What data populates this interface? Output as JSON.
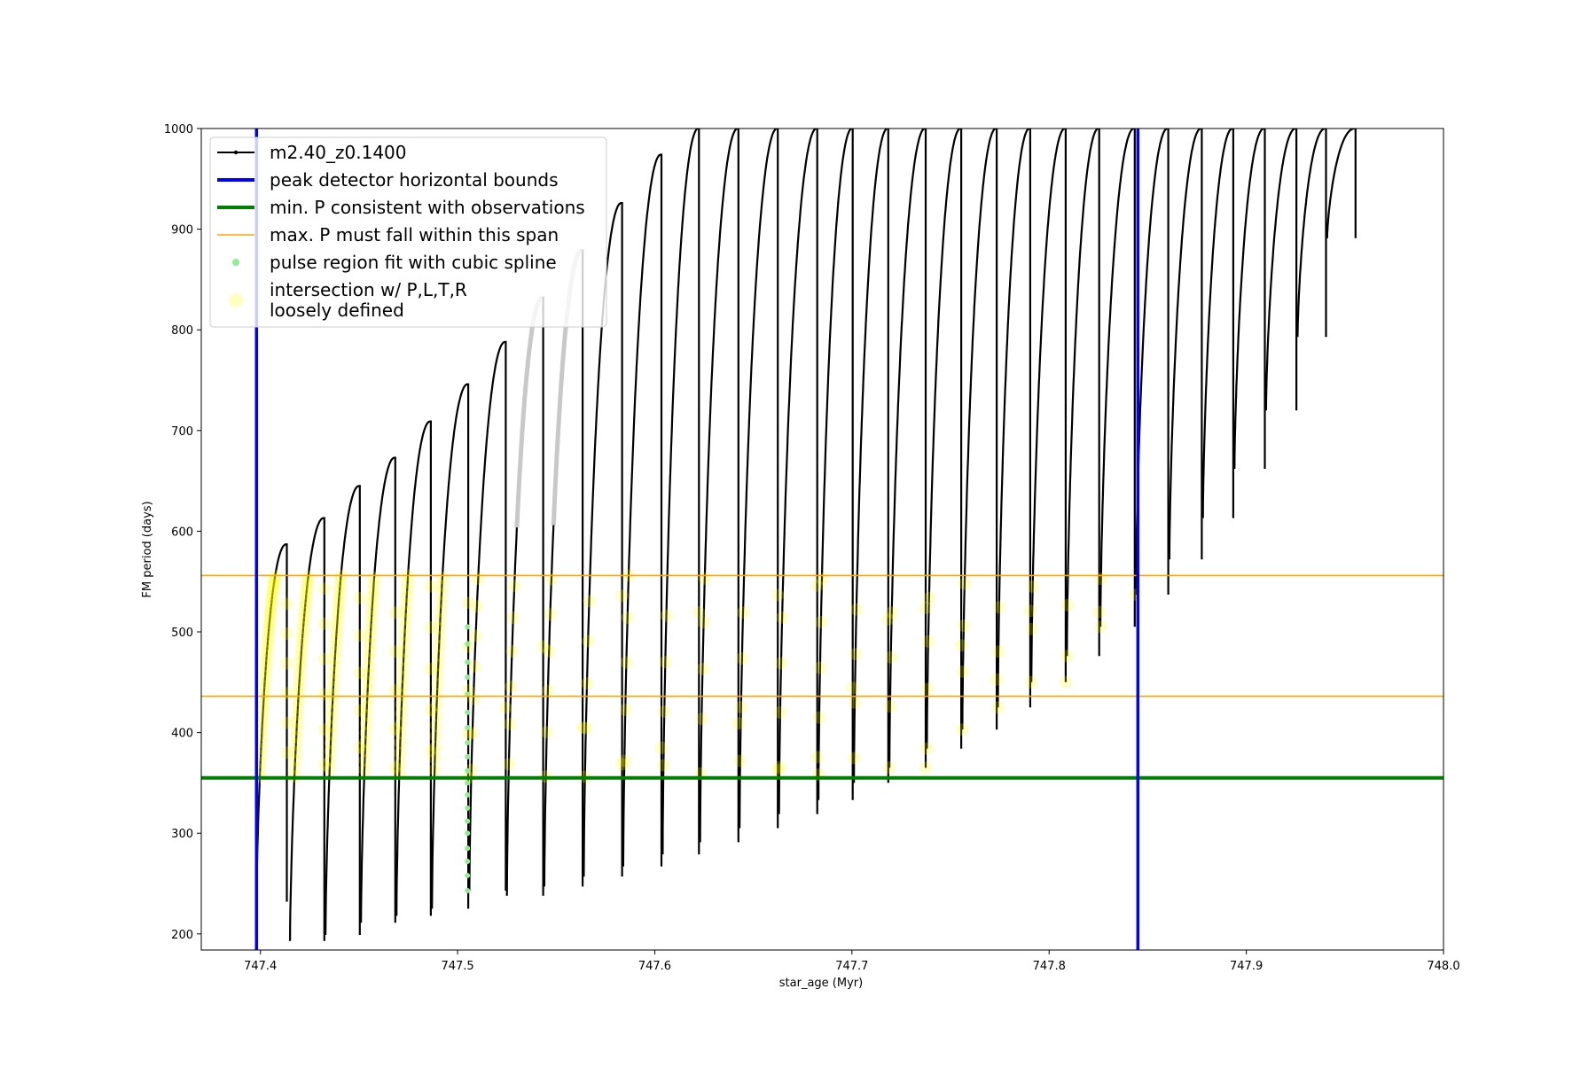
{
  "chart_data": {
    "type": "line",
    "title": "",
    "xlabel": "star_age (Myr)",
    "ylabel": "FM period (days)",
    "xlim": [
      747.37,
      748.0
    ],
    "ylim": [
      184,
      1000
    ],
    "xticks": [
      747.4,
      747.5,
      747.6,
      747.7,
      747.8,
      747.9,
      748.0
    ],
    "xtick_labels": [
      "747.4",
      "747.5",
      "747.6",
      "747.7",
      "747.8",
      "747.9",
      "748.0"
    ],
    "yticks": [
      200,
      300,
      400,
      500,
      600,
      700,
      800,
      900,
      1000
    ],
    "ytick_labels": [
      "200",
      "300",
      "400",
      "500",
      "600",
      "700",
      "800",
      "900",
      "1000"
    ],
    "grid": false,
    "legend_position": "top-left",
    "colors": {
      "track": "#000000",
      "bounds": "#0000ff",
      "min_p": "#008000",
      "max_p": "#ffa500",
      "spline": "#90ee90",
      "intersection": "#ffff00",
      "faded_pulse": "#c8c8c8"
    },
    "legend": [
      {
        "label": "m2.40_z0.1400",
        "marker": "line-dot",
        "color": "#000000"
      },
      {
        "label": "peak detector horizontal bounds",
        "marker": "line-thick",
        "color": "#0000ff"
      },
      {
        "label": "min. P consistent with observations",
        "marker": "line-thick",
        "color": "#008000"
      },
      {
        "label": "max. P must fall within this span",
        "marker": "line-thin",
        "color": "#ffa500"
      },
      {
        "label": "pulse region fit with cubic spline",
        "marker": "dot",
        "color": "#90ee90"
      },
      {
        "label": "intersection w/ P,L,T,R",
        "label2": "loosely defined",
        "marker": "big-dot",
        "color": "#ffff00"
      }
    ],
    "vertical_bounds_x": [
      747.398,
      747.845
    ],
    "min_period": 355,
    "max_period_span": [
      436,
      556
    ],
    "pulses": [
      {
        "start": 747.398,
        "end": 747.413,
        "min": 232,
        "peak": 587
      },
      {
        "start": 747.415,
        "end": 747.432,
        "min": 193,
        "peak": 613
      },
      {
        "start": 747.433,
        "end": 747.45,
        "min": 199,
        "peak": 645
      },
      {
        "start": 747.451,
        "end": 747.468,
        "min": 211,
        "peak": 673
      },
      {
        "start": 747.469,
        "end": 747.486,
        "min": 218,
        "peak": 709
      },
      {
        "start": 747.487,
        "end": 747.505,
        "min": 225,
        "peak": 746
      },
      {
        "start": 747.506,
        "end": 747.524,
        "min": 243,
        "peak": 788
      },
      {
        "start": 747.525,
        "end": 747.543,
        "min": 238,
        "peak": 832
      },
      {
        "start": 747.544,
        "end": 747.563,
        "min": 247,
        "peak": 879
      },
      {
        "start": 747.564,
        "end": 747.583,
        "min": 257,
        "peak": 926
      },
      {
        "start": 747.584,
        "end": 747.603,
        "min": 267,
        "peak": 974
      },
      {
        "start": 747.604,
        "end": 747.622,
        "min": 279,
        "peak": 1000
      },
      {
        "start": 747.623,
        "end": 747.642,
        "min": 291,
        "peak": 1000
      },
      {
        "start": 747.643,
        "end": 747.662,
        "min": 305,
        "peak": 1000
      },
      {
        "start": 747.663,
        "end": 747.682,
        "min": 319,
        "peak": 1000
      },
      {
        "start": 747.683,
        "end": 747.7,
        "min": 333,
        "peak": 1000
      },
      {
        "start": 747.701,
        "end": 747.718,
        "min": 350,
        "peak": 1000
      },
      {
        "start": 747.719,
        "end": 747.737,
        "min": 365,
        "peak": 1000
      },
      {
        "start": 747.738,
        "end": 747.755,
        "min": 384,
        "peak": 1000
      },
      {
        "start": 747.756,
        "end": 747.773,
        "min": 403,
        "peak": 1000
      },
      {
        "start": 747.774,
        "end": 747.79,
        "min": 425,
        "peak": 1000
      },
      {
        "start": 747.791,
        "end": 747.808,
        "min": 450,
        "peak": 1000
      },
      {
        "start": 747.809,
        "end": 747.825,
        "min": 476,
        "peak": 1000
      },
      {
        "start": 747.826,
        "end": 747.843,
        "min": 505,
        "peak": 1000
      },
      {
        "start": 747.844,
        "end": 747.86,
        "min": 537,
        "peak": 1000
      },
      {
        "start": 747.861,
        "end": 747.877,
        "min": 572,
        "peak": 1000
      },
      {
        "start": 747.878,
        "end": 747.893,
        "min": 613,
        "peak": 1000
      },
      {
        "start": 747.894,
        "end": 747.909,
        "min": 662,
        "peak": 1000
      },
      {
        "start": 747.91,
        "end": 747.925,
        "min": 720,
        "peak": 1000
      },
      {
        "start": 747.926,
        "end": 747.94,
        "min": 793,
        "peak": 1000
      },
      {
        "start": 747.941,
        "end": 747.955,
        "min": 891,
        "peak": 1000
      }
    ],
    "faded_pulses": [
      7,
      8
    ],
    "spline_points": {
      "x": 747.505,
      "y": [
        243,
        258,
        272,
        285,
        300,
        312,
        325,
        338,
        350,
        362,
        376,
        390,
        405,
        420,
        438,
        455,
        470,
        488,
        505
      ]
    }
  }
}
